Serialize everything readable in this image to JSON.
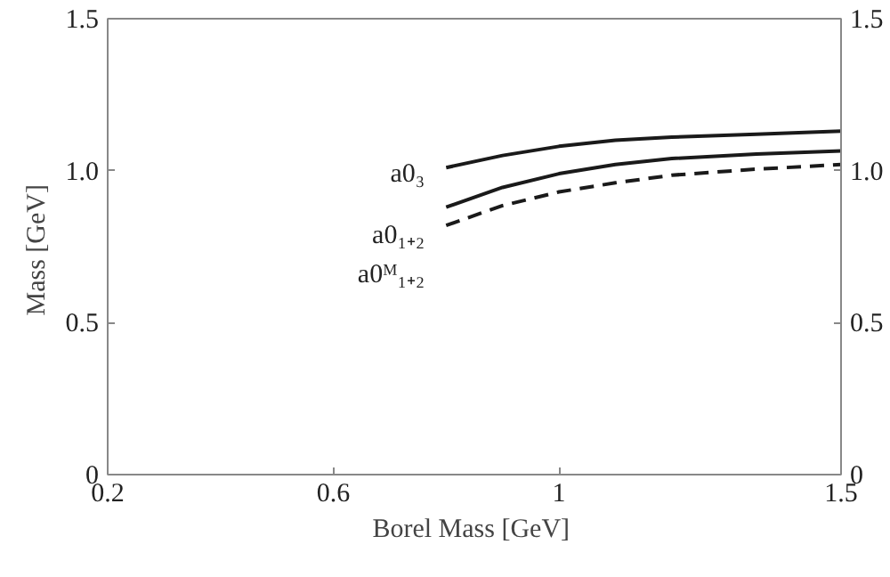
{
  "chart_data": {
    "type": "line",
    "xlabel": "Borel Mass  [GeV]",
    "ylabel": "Mass  [GeV]",
    "x": [
      0.8,
      0.9,
      1.0,
      1.1,
      1.2,
      1.35,
      1.5
    ],
    "series": [
      {
        "name": "a0₃",
        "color": "#1a1a1a",
        "line_style": "solid",
        "values": [
          1.01,
          1.05,
          1.08,
          1.1,
          1.11,
          1.12,
          1.13
        ]
      },
      {
        "name": "a0₁₊₂",
        "color": "#1a1a1a",
        "line_style": "solid",
        "values": [
          0.88,
          0.945,
          0.99,
          1.02,
          1.04,
          1.055,
          1.065
        ]
      },
      {
        "name": "a0ᴹ₁₊₂",
        "color": "#1a1a1a",
        "line_style": "dashed",
        "values": [
          0.82,
          0.885,
          0.93,
          0.96,
          0.985,
          1.005,
          1.02
        ]
      }
    ],
    "xlim": [
      0.2,
      1.5
    ],
    "xticks": [
      0.2,
      0.6,
      1,
      1.5
    ],
    "ylim": [
      0,
      1.5
    ],
    "yticks": [
      {
        "value": 0,
        "label": "0"
      },
      0.5,
      {
        "value": 1,
        "label": "1.0"
      },
      1.5
    ],
    "y2lim": [
      0,
      1.5
    ],
    "y2ticks": [
      {
        "value": 0,
        "label": "0"
      },
      0.5,
      {
        "value": 1,
        "label": "1.0"
      },
      1.5
    ],
    "grid": false,
    "marker": "none"
  }
}
